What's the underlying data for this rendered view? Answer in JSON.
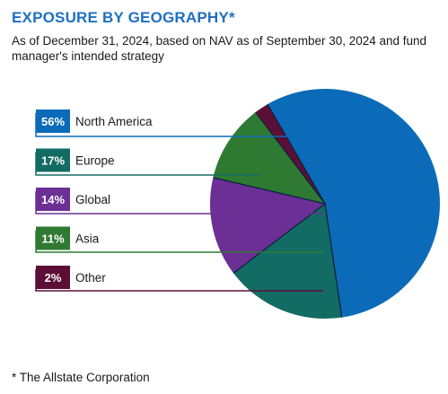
{
  "title": "EXPOSURE BY GEOGRAPHY*",
  "subtitle": "As of December 31, 2024, based on NAV as of September 30, 2024 and fund manager's intended strategy",
  "footnote": "* The Allstate Corporation",
  "chart_data": {
    "type": "pie",
    "title": "EXPOSURE BY GEOGRAPHY*",
    "slices": [
      {
        "label": "North America",
        "pct_label": "56%",
        "value": 56,
        "color": "#0b6bb8"
      },
      {
        "label": "Europe",
        "pct_label": "17%",
        "value": 17,
        "color": "#136c64"
      },
      {
        "label": "Global",
        "pct_label": "14%",
        "value": 14,
        "color": "#6b2f96"
      },
      {
        "label": "Asia",
        "pct_label": "11%",
        "value": 11,
        "color": "#2f7a33"
      },
      {
        "label": "Other",
        "pct_label": "2%",
        "value": 2,
        "color": "#5c0f36"
      }
    ],
    "legend_placement": "left"
  }
}
